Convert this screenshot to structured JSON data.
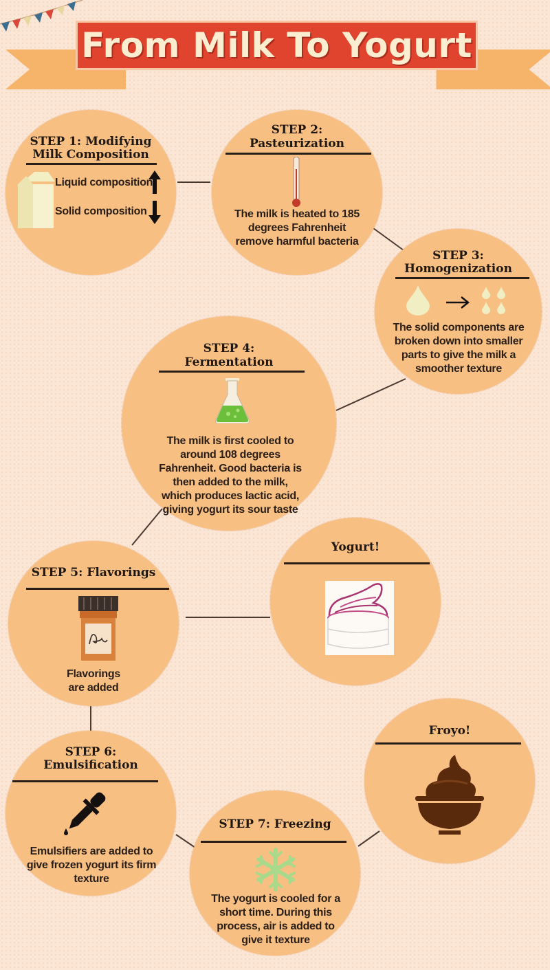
{
  "title": "From Milk To Yogurt",
  "steps": [
    {
      "heading_line1": "STEP 1: Modifying",
      "heading_line2": "Milk Composition",
      "liquid_label": "Liquid composition",
      "solid_label": "Solid composition",
      "icons": [
        "milk-carton-icon",
        "arrow-up-icon",
        "arrow-down-icon"
      ]
    },
    {
      "heading_line1": "STEP 2:",
      "heading_line2": "Pasteurization",
      "text": "The milk is heated to 185 degrees Fahrenheit remove harmful bacteria",
      "icons": [
        "thermometer-icon"
      ]
    },
    {
      "heading_line1": "STEP 3:",
      "heading_line2": "Homogenization",
      "text": "The solid components are broken down into smaller parts to give the milk a smoother texture",
      "icons": [
        "drop-icon",
        "arrow-right-icon",
        "small-drops-icon"
      ]
    },
    {
      "heading_line1": "STEP 4:",
      "heading_line2": "Fermentation",
      "text": "The milk is first cooled to around 108 degrees Fahrenheit. Good bacteria is then added to the milk, which produces lactic acid, giving yogurt its sour taste",
      "icons": [
        "flask-icon"
      ]
    },
    {
      "heading_line1": "STEP 5: Flavorings",
      "text": "Flavorings are added",
      "icons": [
        "spice-jar-icon"
      ]
    },
    {
      "heading_line1": "STEP 6:",
      "heading_line2": "Emulsification",
      "text": "Emulsifiers are added to give frozen yogurt its firm texture",
      "icons": [
        "dropper-icon"
      ]
    },
    {
      "heading_line1": "STEP 7: Freezing",
      "text": "The yogurt is cooled for a short time. During this process, air is added to give it texture",
      "icons": [
        "snowflake-icon"
      ]
    }
  ],
  "results": [
    {
      "heading": "Yogurt!",
      "icon": "yogurt-cup-icon"
    },
    {
      "heading": "Froyo!",
      "icon": "froyo-bowl-icon"
    }
  ],
  "colors": {
    "background": "#fbe6d6",
    "circle": "#f8bf83",
    "banner": "#e0442f",
    "banner_text": "#fbeed0",
    "ribbon": "#f6b46a",
    "text": "#2a1f18",
    "flask_liquid": "#6cbf3a",
    "froyo": "#5a2a0c",
    "snowflake": "#a9d98a"
  }
}
